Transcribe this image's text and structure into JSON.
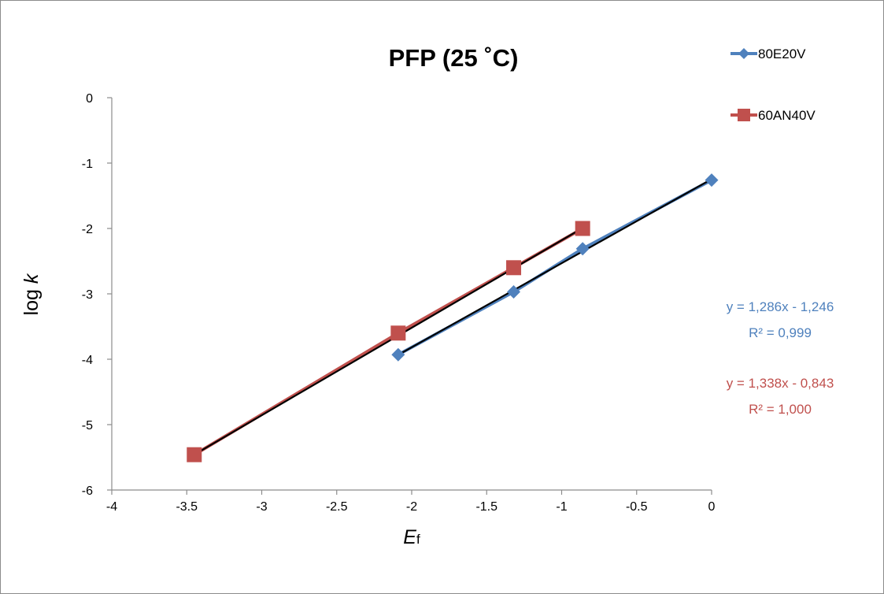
{
  "chart_data": {
    "type": "line",
    "title": "PFP (25 ˚C)",
    "xlabel_main": "E",
    "xlabel_sub": "f",
    "ylabel_main": "log ",
    "ylabel_italic": "k",
    "xlim": [
      -4,
      0
    ],
    "ylim": [
      -6,
      0
    ],
    "xticks": [
      -4,
      -3.5,
      -3,
      -2.5,
      -2,
      -1.5,
      -1,
      -0.5,
      0
    ],
    "yticks": [
      0,
      -1,
      -2,
      -3,
      -4,
      -5,
      -6
    ],
    "grid": false,
    "legend_position": "top-right",
    "series": [
      {
        "name": "80E20V",
        "color": "#4f81bd",
        "marker": "diamond",
        "x": [
          -2.09,
          -1.32,
          -0.86,
          0
        ],
        "y": [
          -3.93,
          -2.97,
          -2.31,
          -1.26
        ]
      },
      {
        "name": "60AN40V",
        "color": "#c0504d",
        "marker": "square",
        "x": [
          -3.45,
          -2.09,
          -1.32,
          -0.86
        ],
        "y": [
          -5.46,
          -3.6,
          -2.6,
          -2.0
        ]
      }
    ],
    "trendlines": [
      {
        "series": "80E20V",
        "slope": 1.286,
        "intercept": -1.246,
        "x_range": [
          -2.09,
          0
        ],
        "color": "#000000"
      },
      {
        "series": "60AN40V",
        "slope": 1.338,
        "intercept": -0.843,
        "x_range": [
          -3.45,
          -0.86
        ],
        "color": "#000000"
      }
    ],
    "annotations": [
      {
        "series": "80E20V",
        "equation": "y = 1,286x - 1,246",
        "r2": "R² = 0,999",
        "color": "#4f81bd"
      },
      {
        "series": "60AN40V",
        "equation": "y = 1,338x - 0,843",
        "r2": "R² = 1,000",
        "color": "#c0504d"
      }
    ]
  }
}
